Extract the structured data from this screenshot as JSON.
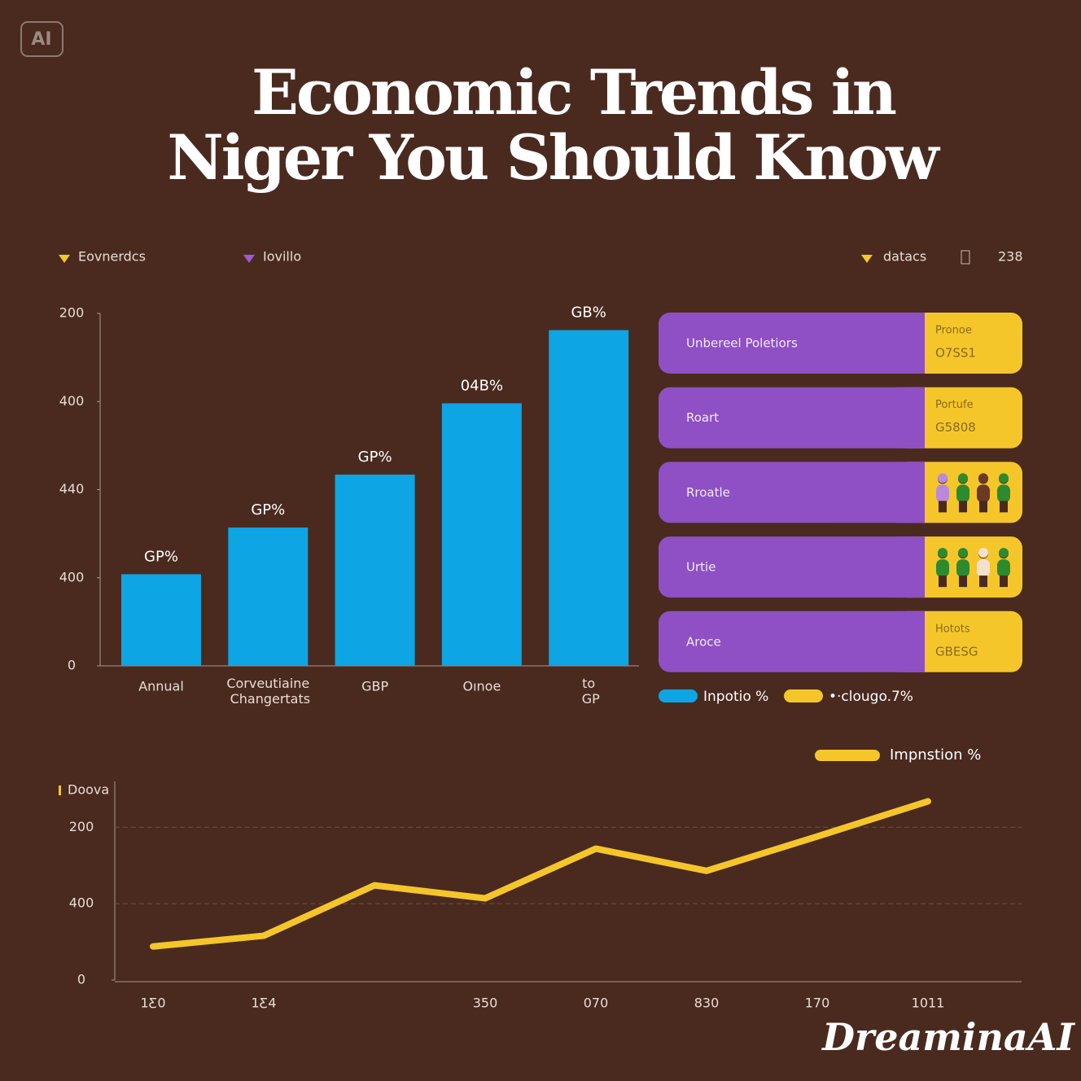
{
  "badge": "AI",
  "title": [
    "Economic Trends in",
    "Niger You Should Know"
  ],
  "top_legend": {
    "left": [
      "Eovnerdcs",
      "Iovillo"
    ],
    "right": [
      "datacs",
      "238"
    ]
  },
  "chart_data": [
    {
      "type": "bar",
      "color": "#0ea5e4",
      "categories": [
        "Annual",
        "Corveutiaine Changertats",
        "GBP",
        "Oınoe",
        "to GP"
      ],
      "values": [
        1.04,
        1.57,
        2.17,
        2.98,
        3.81
      ],
      "value_labels": [
        "GP%",
        "GP%",
        "GP%",
        "04B%",
        "GB%"
      ],
      "ylim": [
        0,
        4
      ],
      "yticks": [
        {
          "value": 0,
          "label": "0"
        },
        {
          "value": 1,
          "label": "400"
        },
        {
          "value": 2,
          "label": "440"
        },
        {
          "value": 3,
          "label": "400"
        },
        {
          "value": 4,
          "label": "200"
        }
      ]
    },
    {
      "type": "line",
      "y_label": "Doova",
      "series": [
        {
          "name": "Impnstion %",
          "color": "#f5c62a",
          "values": [
            0.44,
            0.58,
            1.24,
            1.07,
            1.72,
            1.43,
            1.88,
            2.34
          ]
        }
      ],
      "categories": [
        "1Ƹ0",
        "1Ƹ4",
        null,
        "350",
        "070",
        "830",
        "170",
        "1011"
      ],
      "ylim": [
        0,
        2.6
      ],
      "yticks": [
        {
          "value": 0,
          "label": "0"
        },
        {
          "value": 1,
          "label": "400"
        },
        {
          "value": 2,
          "label": "200"
        }
      ],
      "grid": true
    }
  ],
  "panel": {
    "rows": [
      {
        "label": "Unbereel Poletiors",
        "key": "Pronoe",
        "code": "O7SS1"
      },
      {
        "label": "Roart",
        "key": "Portufe",
        "code": "G5808"
      },
      {
        "label": "Rroatle"
      },
      {
        "label": "Urtie"
      },
      {
        "label": "Aroce",
        "key": "Hotots",
        "code": "GBESG"
      }
    ],
    "legend": [
      {
        "name": "Inpotio %",
        "color": "#0ea5e4"
      },
      {
        "name": "•·clougo.7%",
        "color": "#f5c62a"
      }
    ]
  },
  "watermark": "DreaminaAI"
}
